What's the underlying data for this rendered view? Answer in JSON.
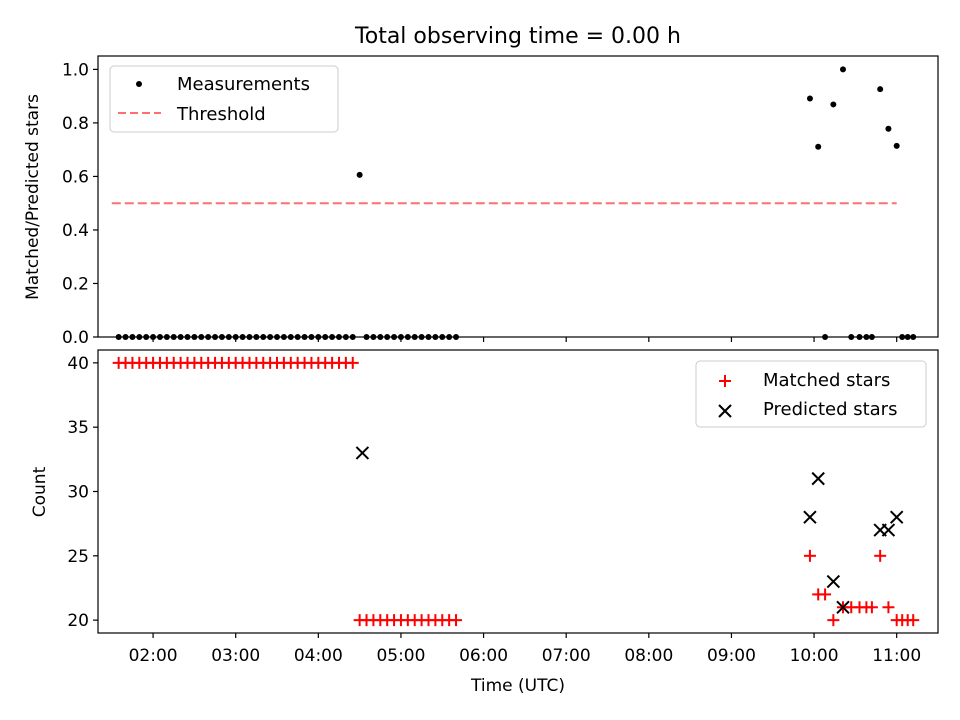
{
  "figure": {
    "title": "Total observing time = 0.00 h"
  },
  "chart_data": [
    {
      "type": "scatter",
      "ylabel": "Matched/Predicted stars",
      "ylim": [
        0.0,
        1.05
      ],
      "yticks": [
        "0.0",
        "0.2",
        "0.4",
        "0.6",
        "0.8",
        "1.0"
      ],
      "xlim": [
        "01:20",
        "11:30"
      ],
      "legend_position": "upper-left",
      "colors": {
        "measurements": "#000000",
        "threshold": "#ff6f6f"
      },
      "series": [
        {
          "name": "Measurements",
          "marker": "dot",
          "x": [
            "01:35",
            "01:40",
            "01:45",
            "01:50",
            "01:55",
            "02:00",
            "02:05",
            "02:10",
            "02:15",
            "02:20",
            "02:25",
            "02:30",
            "02:35",
            "02:40",
            "02:45",
            "02:50",
            "02:55",
            "03:00",
            "03:05",
            "03:10",
            "03:15",
            "03:20",
            "03:25",
            "03:30",
            "03:35",
            "03:40",
            "03:45",
            "03:50",
            "03:55",
            "04:00",
            "04:05",
            "04:10",
            "04:15",
            "04:20",
            "04:25",
            "04:30",
            "04:35",
            "04:40",
            "04:45",
            "04:50",
            "04:55",
            "05:00",
            "05:05",
            "05:10",
            "05:15",
            "05:20",
            "05:25",
            "05:30",
            "05:35",
            "05:40",
            "09:57",
            "10:03",
            "10:08",
            "10:14",
            "10:21",
            "10:27",
            "10:33",
            "10:38",
            "10:42",
            "10:48",
            "10:54",
            "11:00",
            "11:04",
            "11:08",
            "11:12"
          ],
          "y": [
            0,
            0,
            0,
            0,
            0,
            0,
            0,
            0,
            0,
            0,
            0,
            0,
            0,
            0,
            0,
            0,
            0,
            0,
            0,
            0,
            0,
            0,
            0,
            0,
            0,
            0,
            0,
            0,
            0,
            0,
            0,
            0,
            0,
            0,
            0,
            0.606,
            0,
            0,
            0,
            0,
            0,
            0,
            0,
            0,
            0,
            0,
            0,
            0,
            0,
            0,
            0.891,
            0.711,
            0,
            0.869,
            1.0,
            0,
            0,
            0,
            0,
            0.926,
            0.778,
            0.714,
            0,
            0,
            0
          ]
        },
        {
          "name": "Threshold",
          "style": "dashed",
          "x": [
            "01:30",
            "11:00"
          ],
          "y": [
            0.5,
            0.5
          ]
        }
      ]
    },
    {
      "type": "scatter",
      "xlabel": "Time (UTC)",
      "ylabel": "Count",
      "ylim": [
        19,
        41
      ],
      "yticks": [
        "20",
        "25",
        "30",
        "35",
        "40"
      ],
      "xlim": [
        "01:20",
        "11:30"
      ],
      "xticks": [
        "02:00",
        "03:00",
        "04:00",
        "05:00",
        "06:00",
        "07:00",
        "08:00",
        "09:00",
        "10:00",
        "11:00"
      ],
      "legend_position": "upper-right",
      "colors": {
        "matched": "#ff0000",
        "predicted": "#000000"
      },
      "series": [
        {
          "name": "Matched stars",
          "marker": "plus",
          "x": [
            "01:35",
            "01:40",
            "01:45",
            "01:50",
            "01:55",
            "02:00",
            "02:05",
            "02:10",
            "02:15",
            "02:20",
            "02:25",
            "02:30",
            "02:35",
            "02:40",
            "02:45",
            "02:50",
            "02:55",
            "03:00",
            "03:05",
            "03:10",
            "03:15",
            "03:20",
            "03:25",
            "03:30",
            "03:35",
            "03:40",
            "03:45",
            "03:50",
            "03:55",
            "04:00",
            "04:05",
            "04:10",
            "04:15",
            "04:20",
            "04:25",
            "04:30",
            "04:35",
            "04:40",
            "04:45",
            "04:50",
            "04:55",
            "05:00",
            "05:05",
            "05:10",
            "05:15",
            "05:20",
            "05:25",
            "05:30",
            "05:35",
            "05:40",
            "09:57",
            "10:03",
            "10:08",
            "10:14",
            "10:21",
            "10:27",
            "10:33",
            "10:38",
            "10:42",
            "10:48",
            "10:54",
            "11:00",
            "11:04",
            "11:08",
            "11:12"
          ],
          "y": [
            40,
            40,
            40,
            40,
            40,
            40,
            40,
            40,
            40,
            40,
            40,
            40,
            40,
            40,
            40,
            40,
            40,
            40,
            40,
            40,
            40,
            40,
            40,
            40,
            40,
            40,
            40,
            40,
            40,
            40,
            40,
            40,
            40,
            40,
            40,
            20,
            20,
            20,
            20,
            20,
            20,
            20,
            20,
            20,
            20,
            20,
            20,
            20,
            20,
            20,
            25,
            22,
            22,
            20,
            21,
            21,
            21,
            21,
            21,
            25,
            21,
            20,
            20,
            20,
            20
          ]
        },
        {
          "name": "Predicted stars",
          "marker": "x",
          "x": [
            "04:32",
            "09:57",
            "10:03",
            "10:14",
            "10:21",
            "10:48",
            "10:54",
            "11:00"
          ],
          "y": [
            33,
            28,
            31,
            23,
            21,
            27,
            27,
            28
          ]
        }
      ]
    }
  ]
}
